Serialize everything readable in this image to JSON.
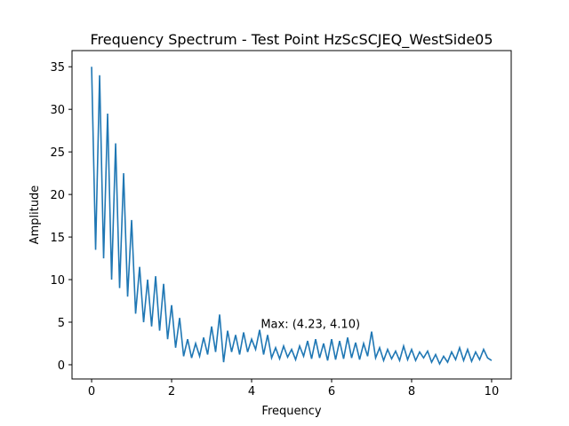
{
  "chart_data": {
    "type": "line",
    "title": "Frequency Spectrum - Test Point HzScSCJEQ_WestSide05",
    "xlabel": "Frequency",
    "ylabel": "Amplitude",
    "x": [
      0,
      0.1,
      0.2,
      0.3,
      0.4,
      0.5,
      0.6,
      0.7,
      0.8,
      0.9,
      1,
      1.1,
      1.2,
      1.3,
      1.4,
      1.5,
      1.6,
      1.7,
      1.8,
      1.9,
      2,
      2.1,
      2.2,
      2.3,
      2.4,
      2.5,
      2.6,
      2.7,
      2.8,
      2.9,
      3,
      3.1,
      3.2,
      3.3,
      3.4,
      3.5,
      3.6,
      3.7,
      3.8,
      3.9,
      4,
      4.1,
      4.2,
      4.3,
      4.4,
      4.5,
      4.6,
      4.7,
      4.8,
      4.9,
      5,
      5.1,
      5.2,
      5.3,
      5.4,
      5.5,
      5.6,
      5.7,
      5.8,
      5.9,
      6,
      6.1,
      6.2,
      6.3,
      6.4,
      6.5,
      6.6,
      6.7,
      6.8,
      6.9,
      7,
      7.1,
      7.2,
      7.3,
      7.4,
      7.5,
      7.6,
      7.7,
      7.8,
      7.9,
      8,
      8.1,
      8.2,
      8.3,
      8.4,
      8.5,
      8.6,
      8.7,
      8.8,
      8.9,
      9,
      9.1,
      9.2,
      9.3,
      9.4,
      9.5,
      9.6,
      9.7,
      9.8,
      9.9,
      10
    ],
    "series": [
      {
        "color": "#1f77b4",
        "values": [
          35,
          13.5,
          34,
          12.5,
          29.5,
          10,
          26,
          9,
          22.5,
          8,
          17,
          6,
          11.5,
          5,
          10,
          4.5,
          10.4,
          4,
          9.5,
          3,
          7,
          2,
          5.5,
          1,
          3,
          0.8,
          2.5,
          1,
          3.2,
          1.2,
          4.5,
          1.5,
          5.9,
          0.3,
          4,
          1.5,
          3.5,
          1.2,
          3.8,
          1.5,
          3,
          1.8,
          4.1,
          1.2,
          3.5,
          0.8,
          2,
          0.7,
          2.2,
          0.9,
          1.8,
          0.6,
          2.2,
          1,
          2.8,
          0.7,
          3,
          0.8,
          2.5,
          0.5,
          3,
          0.6,
          2.8,
          0.7,
          3.2,
          0.8,
          2.6,
          0.6,
          2.5,
          1,
          3.9,
          0.8,
          2,
          0.5,
          1.8,
          0.7,
          1.6,
          0.5,
          2.2,
          0.6,
          1.8,
          0.5,
          1.5,
          0.8,
          1.6,
          0.3,
          1.2,
          0.1,
          1,
          0.3,
          1.5,
          0.6,
          2,
          0.5,
          1.8,
          0.4,
          1.5,
          0.6,
          1.8,
          0.8,
          0.5
        ]
      }
    ],
    "annotation": {
      "text": "Max: (4.23, 4.10)",
      "x": 4.23,
      "y": 4.1
    },
    "xlim": [
      -0.49,
      10.49
    ],
    "ylim": [
      -1.67,
      36.9
    ],
    "xticks": [
      0,
      2,
      4,
      6,
      8,
      10
    ],
    "yticks": [
      0,
      5,
      10,
      15,
      20,
      25,
      30,
      35
    ]
  }
}
